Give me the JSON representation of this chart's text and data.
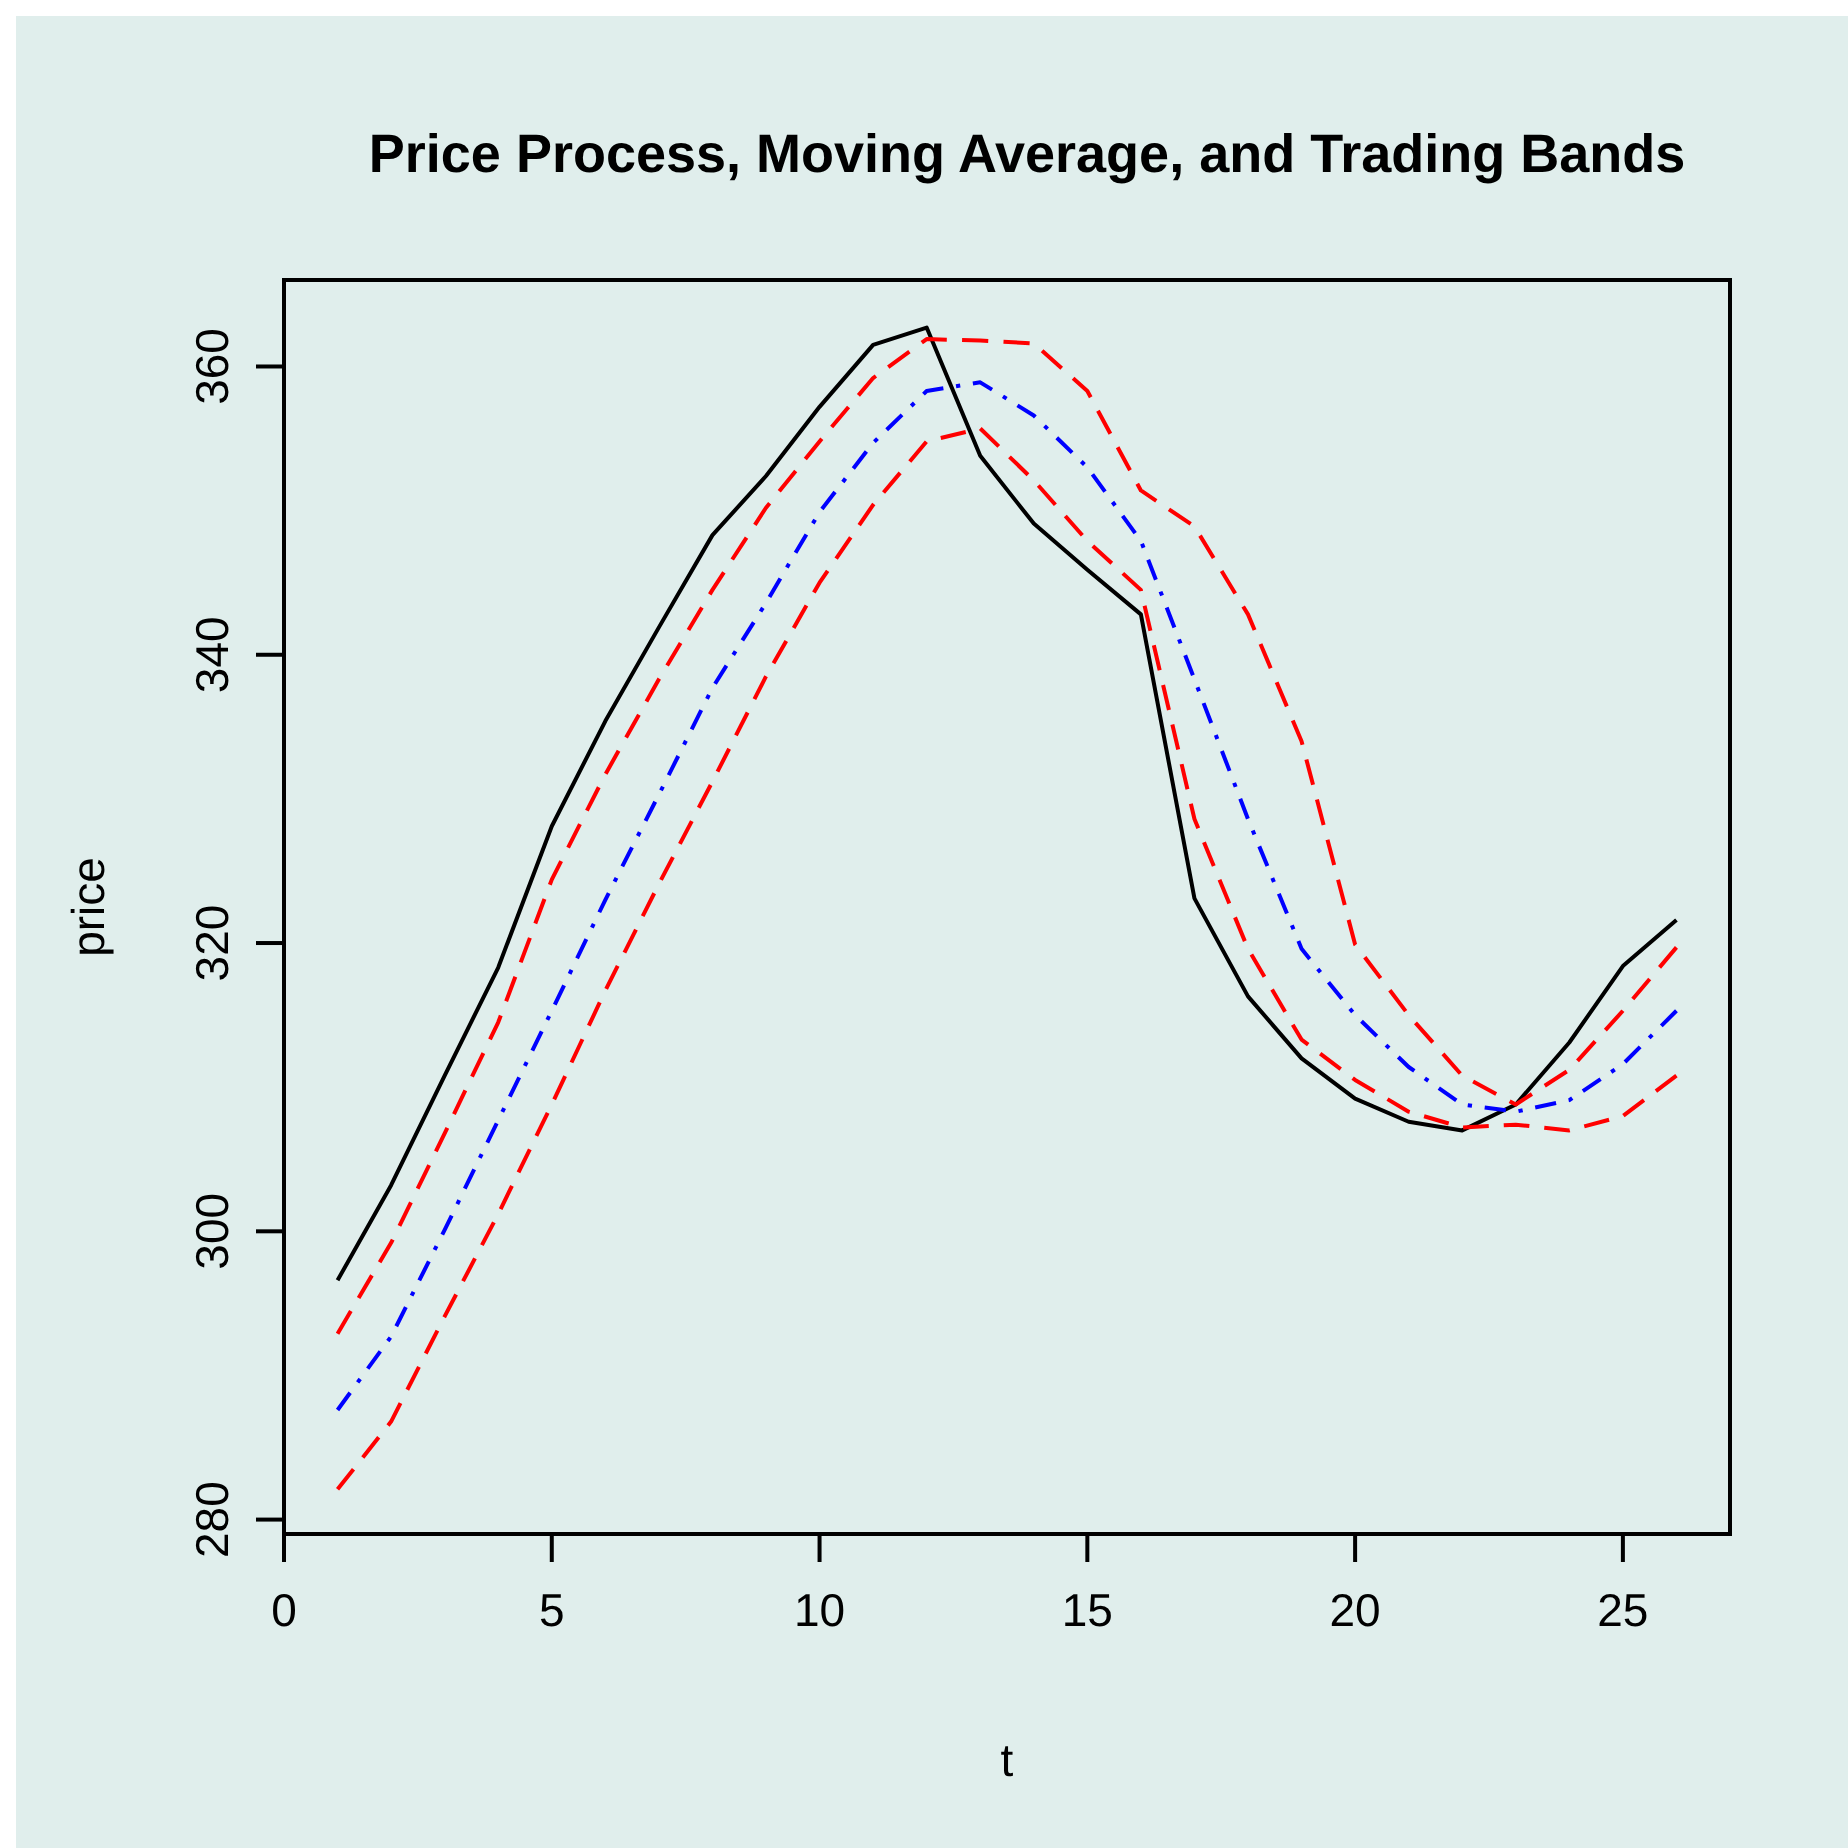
{
  "chart_data": {
    "type": "line",
    "title": "Price Process, Moving Average, and Trading Bands",
    "xlabel": "t",
    "ylabel": "price",
    "x": [
      1,
      2,
      3,
      4,
      5,
      6,
      7,
      8,
      9,
      10,
      11,
      12,
      13,
      14,
      15,
      16,
      17,
      18,
      19,
      20,
      21,
      22,
      23,
      24,
      25,
      26
    ],
    "xlim": [
      0,
      27
    ],
    "ylim": [
      279,
      366
    ],
    "xticks": [
      0,
      5,
      10,
      15,
      20,
      25
    ],
    "yticks": [
      280,
      300,
      320,
      340,
      360
    ],
    "grid": false,
    "series": [
      {
        "color": "#000000",
        "line_style": "solid",
        "values": [
          296.6,
          303.2,
          310.8,
          318.3,
          328.1,
          335.4,
          341.9,
          348.3,
          352.4,
          357.2,
          361.5,
          362.7,
          353.8,
          349.1,
          345.9,
          342.8,
          323.1,
          316.3,
          312.0,
          309.2,
          307.6,
          307.0,
          308.8,
          313.1,
          318.4,
          321.6
        ]
      },
      {
        "color": "#ff0000",
        "line_style": "dashed",
        "values": [
          292.9,
          299.2,
          306.8,
          314.5,
          324.4,
          331.7,
          338.3,
          344.5,
          350.2,
          354.8,
          359.2,
          361.9,
          361.8,
          361.6,
          358.3,
          351.4,
          348.9,
          342.8,
          334.0,
          319.9,
          315.0,
          310.8,
          308.8,
          311.2,
          315.3,
          319.7
        ]
      },
      {
        "color": "#0000ff",
        "line_style": "dashdot",
        "values": [
          287.6,
          292.7,
          300.1,
          307.7,
          315.3,
          323.0,
          330.3,
          337.7,
          343.6,
          349.9,
          354.7,
          358.3,
          358.9,
          356.6,
          353.0,
          347.9,
          338.3,
          328.6,
          319.6,
          315.0,
          311.4,
          308.8,
          308.3,
          309.1,
          311.6,
          315.3
        ]
      },
      {
        "color": "#ff0000",
        "line_style": "dashed",
        "values": [
          282.1,
          286.8,
          294.1,
          301.2,
          308.8,
          316.7,
          324.1,
          331.2,
          338.5,
          345.0,
          350.4,
          354.8,
          355.7,
          352.1,
          347.9,
          344.5,
          328.6,
          319.6,
          313.3,
          310.5,
          308.3,
          307.2,
          307.4,
          307.0,
          308.0,
          310.8
        ]
      }
    ]
  }
}
